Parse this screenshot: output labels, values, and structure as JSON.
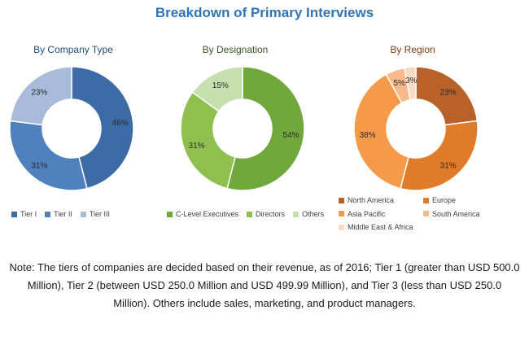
{
  "title": "Breakdown of Primary Interviews",
  "chart_data": [
    {
      "type": "pie",
      "title": "By Company Type",
      "categories": [
        "Tier I",
        "Tier II",
        "Tier III"
      ],
      "values": [
        46,
        31,
        23
      ],
      "labels": [
        "46%",
        "31%",
        "23%"
      ],
      "colors": [
        "#3d6ba6",
        "#4f81bd",
        "#a8bbda"
      ]
    },
    {
      "type": "pie",
      "title": "By Designation",
      "categories": [
        "C-Level Executives",
        "Directors",
        "Others"
      ],
      "values": [
        54,
        31,
        15
      ],
      "labels": [
        "54%",
        "31%",
        "15%"
      ],
      "colors": [
        "#70a83c",
        "#8fc04f",
        "#c6dfae"
      ]
    },
    {
      "type": "pie",
      "title": "By Region",
      "categories": [
        "North America",
        "Europe",
        "Asia Pacific",
        "South America",
        "Middle East & Africa"
      ],
      "values": [
        23,
        31,
        38,
        5,
        3
      ],
      "labels": [
        "23%",
        "31%",
        "38%",
        "5%",
        "3%"
      ],
      "colors": [
        "#b86128",
        "#e07b2a",
        "#f59a48",
        "#f8b98c",
        "#fbd8c2"
      ]
    }
  ],
  "note": "Note: The tiers of companies are decided based on their revenue, as of 2016; Tier 1 (greater than USD 500.0 Million), Tier 2 (between USD 250.0 Million and USD 499.99 Million), and Tier 3 (less than USD 250.0 Million). Others include sales, marketing, and product managers."
}
